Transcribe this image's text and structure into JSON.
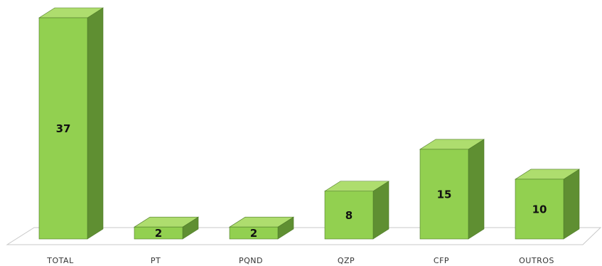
{
  "chart_data": {
    "type": "bar",
    "style": "3d-column",
    "categories": [
      "TOTAL",
      "PT",
      "PQND",
      "QZP",
      "CFP",
      "OUTROS"
    ],
    "values": [
      37,
      2,
      2,
      8,
      15,
      10
    ],
    "data_labels": [
      "37",
      "2",
      "2",
      "8",
      "15",
      "10"
    ],
    "title": "",
    "xlabel": "",
    "ylabel": "",
    "ylim": [
      0,
      37
    ],
    "grid": false,
    "legend": "none",
    "colors": {
      "front": "#92d050",
      "top": "#aedd6e",
      "side": "#5f8f32",
      "outline": "#4e7a28",
      "floor": "#ffffff",
      "floor_outline": "#c8c8c8"
    }
  }
}
